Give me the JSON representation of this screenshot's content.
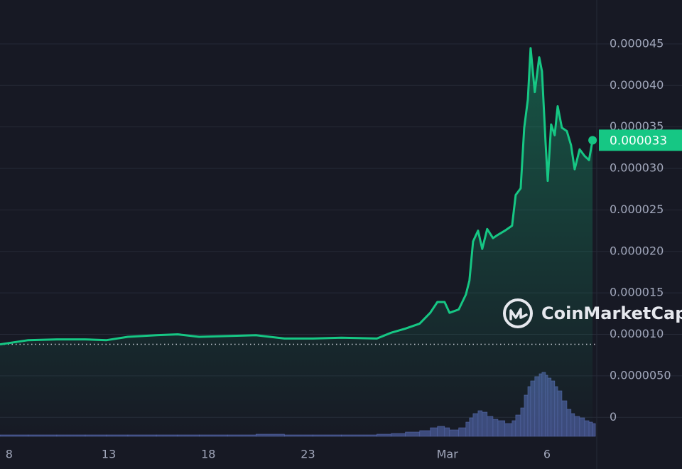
{
  "chart_data": {
    "type": "line",
    "x": [
      7.54,
      8.96,
      10.39,
      11.82,
      12.89,
      13.96,
      15.39,
      16.46,
      17.54,
      18.96,
      20.39,
      21.82,
      23.25,
      24.68,
      26.46,
      27.18,
      27.89,
      28.61,
      29.14,
      29.5,
      29.86,
      30.11,
      30.57,
      30.93,
      31.11,
      31.29,
      31.54,
      31.75,
      32,
      32.29,
      32.54,
      32.89,
      33.25,
      33.43,
      33.68,
      33.86,
      34.04,
      34.18,
      34.39,
      34.61,
      34.75,
      34.93,
      35.04,
      35.21,
      35.39,
      35.54,
      35.75,
      36,
      36.21,
      36.39,
      36.64,
      36.89,
      37.11,
      37.29
    ],
    "series": [
      {
        "color": "#16c784",
        "values": [
          8.8e-06,
          9.3e-06,
          9.4e-06,
          9.4e-06,
          9.3e-06,
          9.7e-06,
          9.9e-06,
          1e-05,
          9.7e-06,
          9.8e-06,
          9.9e-06,
          9.5e-06,
          9.5e-06,
          9.6e-06,
          9.5e-06,
          1.02e-05,
          1.07e-05,
          1.13e-05,
          1.26e-05,
          1.39e-05,
          1.39e-05,
          1.26e-05,
          1.3e-05,
          1.48e-05,
          1.65e-05,
          2.12e-05,
          2.25e-05,
          2.03e-05,
          2.27e-05,
          2.16e-05,
          2.2e-05,
          2.25e-05,
          2.31e-05,
          2.68e-05,
          2.76e-05,
          3.49e-05,
          3.83e-05,
          4.45e-05,
          3.92e-05,
          4.34e-05,
          4.17e-05,
          3.32e-05,
          2.85e-05,
          3.53e-05,
          3.4e-05,
          3.75e-05,
          3.49e-05,
          3.45e-05,
          3.28e-05,
          2.99e-05,
          3.23e-05,
          3.15e-05,
          3.1e-05,
          3.34e-05
        ],
        "last_value_label": "0.000033"
      },
      {
        "color": "#3d4a7c",
        "axis": "y2",
        "values": [
          2,
          2,
          2,
          2,
          2,
          2,
          2,
          2,
          2,
          2,
          3,
          2,
          2,
          2,
          3,
          4,
          6,
          8,
          12,
          14,
          12,
          9,
          12,
          20,
          26,
          32,
          36,
          34,
          28,
          24,
          22,
          18,
          22,
          30,
          40,
          58,
          70,
          78,
          84,
          88,
          90,
          86,
          82,
          78,
          70,
          64,
          50,
          38,
          32,
          28,
          26,
          22,
          20,
          18
        ]
      }
    ],
    "xlim": [
      7.54,
      37.5
    ],
    "xticks": [
      8,
      13,
      18,
      23,
      {
        "value": 30,
        "label": "Mar"
      },
      {
        "value": 35,
        "label": "6"
      }
    ],
    "ylim": [
      -2.8e-06,
      5.03e-05
    ],
    "yticks": [
      0,
      {
        "value": 5e-06,
        "label": "0.0000050"
      },
      {
        "value": 1e-05,
        "label": "0.000010"
      },
      1.5e-05,
      {
        "value": 2e-05,
        "label": "0.000020"
      },
      2.5e-05,
      {
        "value": 3e-05,
        "label": "0.000030"
      },
      3.5e-05,
      {
        "value": 4e-05,
        "label": "0.000040"
      },
      4.5e-05
    ],
    "y2lim": [
      0,
      100
    ],
    "grid": true,
    "watermark": "CoinMarketCap"
  }
}
